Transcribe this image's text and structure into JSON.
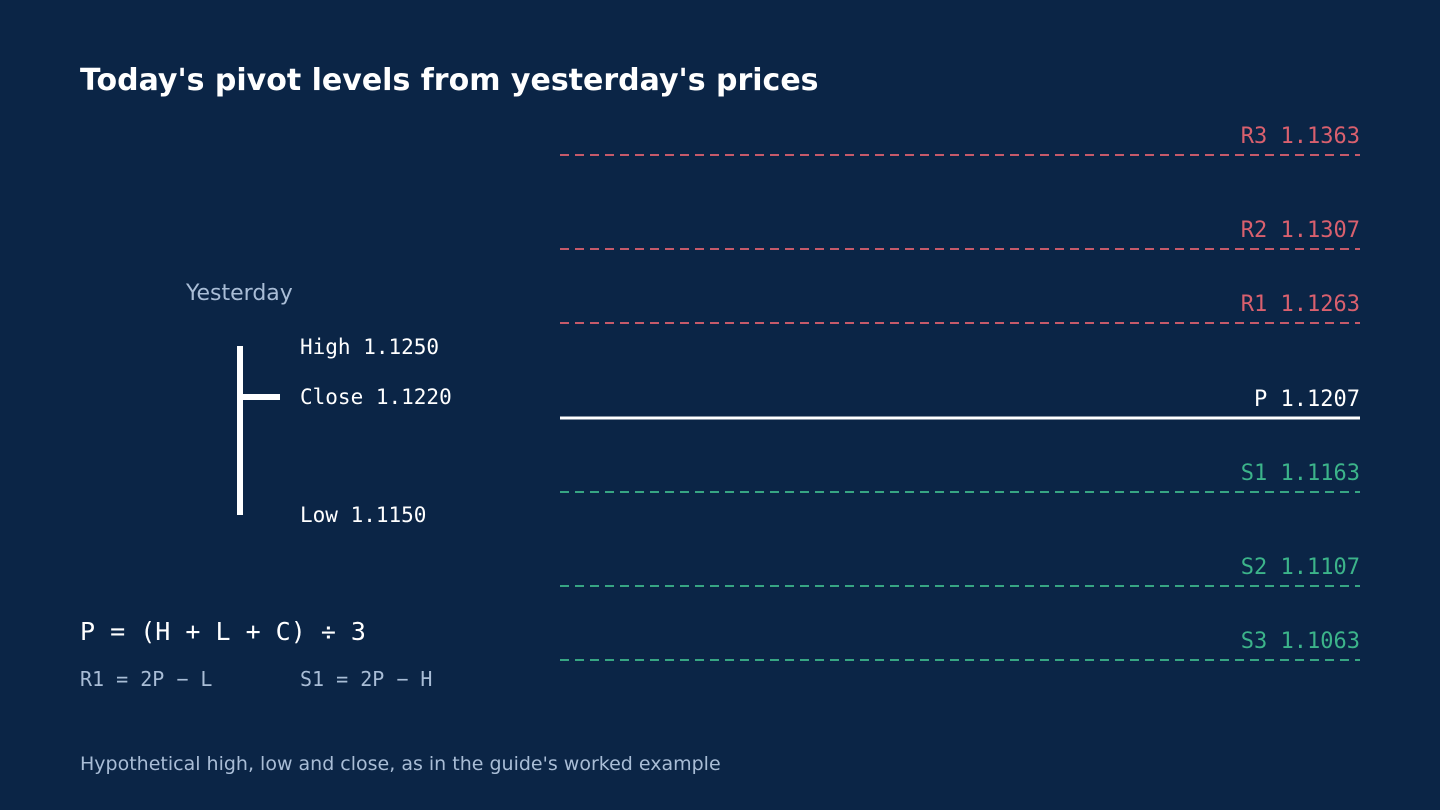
{
  "title": "Today's pivot levels from yesterday's prices",
  "colors": {
    "background": "#0b2546",
    "text": "#ffffff",
    "muted": "#a9bdd6",
    "resistance": "#d9606e",
    "support": "#3cb48a",
    "pivot": "#ffffff"
  },
  "yesterday": {
    "label": "Yesterday",
    "high": {
      "text": "High 1.1250",
      "value": 1.125
    },
    "close": {
      "text": "Close 1.1220",
      "value": 1.122
    },
    "low": {
      "text": "Low 1.1150",
      "value": 1.115
    }
  },
  "levels": [
    {
      "key": "r3",
      "text": "R3 1.1363",
      "value": 1.1363,
      "kind": "resistance"
    },
    {
      "key": "r2",
      "text": "R2 1.1307",
      "value": 1.1307,
      "kind": "resistance"
    },
    {
      "key": "r1",
      "text": "R1 1.1263",
      "value": 1.1263,
      "kind": "resistance"
    },
    {
      "key": "p",
      "text": "P 1.1207",
      "value": 1.1207,
      "kind": "pivot"
    },
    {
      "key": "s1",
      "text": "S1 1.1163",
      "value": 1.1163,
      "kind": "support"
    },
    {
      "key": "s2",
      "text": "S2 1.1107",
      "value": 1.1107,
      "kind": "support"
    },
    {
      "key": "s3",
      "text": "S3 1.1063",
      "value": 1.1063,
      "kind": "support"
    }
  ],
  "formulas": {
    "pivot": "P = (H + L + C) ÷ 3",
    "r1": "R1 = 2P − L",
    "s1": "S1 = 2P − H"
  },
  "footnote": "Hypothetical high, low and close, as in the guide's worked example"
}
